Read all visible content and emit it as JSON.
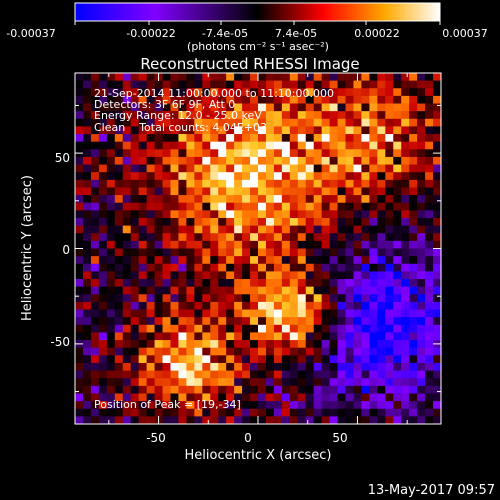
{
  "colorbar": {
    "ticks": [
      "-0.00037",
      "-0.00022",
      "-7.4e-05",
      "7.4e-05",
      "0.00022",
      "0.00037"
    ],
    "unit_label": "(photons cm⁻² s⁻¹ asec⁻²)",
    "range": [
      -0.00037,
      0.00037
    ],
    "colors": [
      "#0000ff",
      "#8000ff",
      "#000000",
      "#ff0000",
      "#ffaa00",
      "#ffffff"
    ]
  },
  "chart_data": {
    "type": "heatmap",
    "title": "Reconstructed RHESSI Image",
    "xlabel": "Heliocentric X (arcsec)",
    "ylabel": "Heliocentric Y (arcsec)",
    "xlim": [
      -92,
      92
    ],
    "ylim": [
      -92,
      92
    ],
    "xticks": [
      -50,
      0,
      50
    ],
    "yticks": [
      50,
      0,
      -50
    ],
    "info_lines": [
      "21-Sep-2014 11:00:00.000 to 11:10:00.000",
      "Detectors: 3F 6F 9F, Att 0",
      "Energy Range: 12.0 - 25.0 keV",
      "Clean    Total counts: 4.04E+03"
    ],
    "peak_label": "Position of Peak = [19,-34]",
    "peak": [
      19,
      -34
    ],
    "pixel_size_arcsec": 4,
    "grid": false
  },
  "footer": {
    "timestamp": "13-May-2017 09:57"
  }
}
